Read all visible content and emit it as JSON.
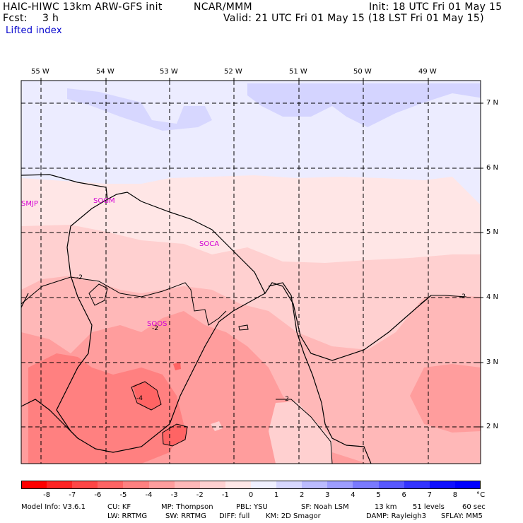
{
  "header": {
    "model": "HAIC-HIWC 13km ARW-GFS init",
    "org": "NCAR/MMM",
    "init": "Init: 18 UTC Fri 01 May 15",
    "fcst_label": "Fcst:",
    "fcst_value": "3 h",
    "valid": "Valid: 21 UTC Fri 01 May 15 (18 LST Fri 01 May 15)",
    "field": "Lifted index"
  },
  "longitudes": [
    "55 W",
    "54 W",
    "53 W",
    "52 W",
    "51 W",
    "50 W",
    "49 W"
  ],
  "latitudes": [
    "7 N",
    "6 N",
    "5 N",
    "4 N",
    "3 N",
    "2 N"
  ],
  "stations": [
    "SMJP",
    "SOGM",
    "SOCA",
    "SOOS"
  ],
  "contour_labels": [
    "-2",
    "-2",
    "-4",
    "-2",
    "-2"
  ],
  "colorbar": {
    "labels": [
      "-8",
      "-7",
      "-6",
      "-5",
      "-4",
      "-3",
      "-2",
      "-1",
      "0",
      "1",
      "2",
      "3",
      "4",
      "5",
      "6",
      "7",
      "8"
    ],
    "unit": "°C",
    "colors": [
      "#ff0000",
      "#ff2323",
      "#ff4646",
      "#ff6464",
      "#ff8080",
      "#ff9d9d",
      "#ffb8b8",
      "#ffd0d0",
      "#ffe6e6",
      "#f0f0ff",
      "#d7d7ff",
      "#bbbbff",
      "#9d9dff",
      "#7a7aff",
      "#5858ff",
      "#3434ff",
      "#1010ff",
      "#0000ff"
    ]
  },
  "footer": {
    "line1": [
      "Model Info: V3.6.1",
      "CU: KF",
      "MP: Thompson",
      "PBL: YSU",
      "SF: Noah LSM",
      "13 km",
      "51 levels",
      "60 sec"
    ],
    "line2": [
      "LW: RRTMG",
      "SW: RRTMG",
      "DIFF: full",
      "KM: 2D Smagor",
      "DAMP: Rayleigh3",
      "SFLAY: MM5"
    ]
  }
}
